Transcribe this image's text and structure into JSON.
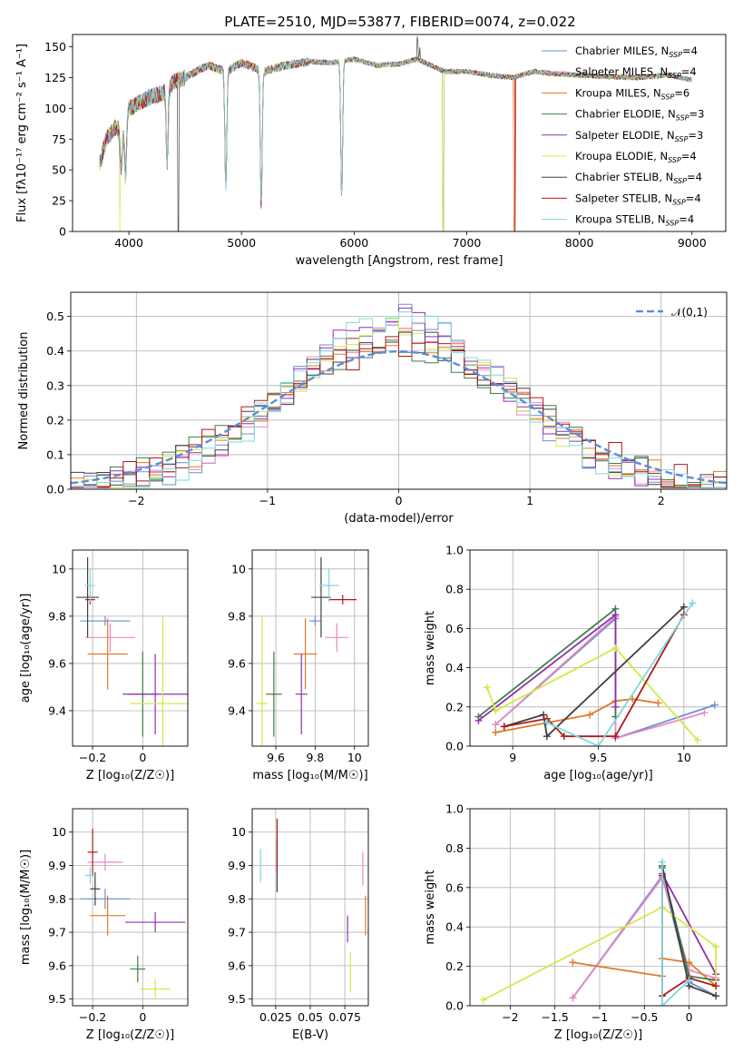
{
  "figure": {
    "title": "PLATE=2510, MJD=53877, FIBERID=0074, z=0.022"
  },
  "models": [
    {
      "name": "Chabrier MILES",
      "nssp": 4,
      "color": "#6b8fd6"
    },
    {
      "name": "Salpeter MILES",
      "nssp": 4,
      "color": "#e88ac0"
    },
    {
      "name": "Kroupa MILES",
      "nssp": 6,
      "color": "#e07a2a"
    },
    {
      "name": "Chabrier ELODIE",
      "nssp": 3,
      "color": "#3e7f4a"
    },
    {
      "name": "Salpeter ELODIE",
      "nssp": 3,
      "color": "#9030b0"
    },
    {
      "name": "Kroupa ELODIE",
      "nssp": 4,
      "color": "#d4e84a"
    },
    {
      "name": "Chabrier STELIB",
      "nssp": 4,
      "color": "#404040"
    },
    {
      "name": "Salpeter STELIB",
      "nssp": 4,
      "color": "#b01818"
    },
    {
      "name": "Kroupa STELIB",
      "nssp": 4,
      "color": "#7dd8e0"
    }
  ],
  "chart_data": [
    {
      "id": "spectrum",
      "type": "line",
      "xlabel": "wavelength [Angstrom, rest frame]",
      "ylabel": "Flux [fλ10⁻¹⁷ erg cm⁻² s⁻¹ A⁻¹]",
      "xlim": [
        3500,
        9300
      ],
      "ylim": [
        0,
        160
      ],
      "xticks": [
        4000,
        5000,
        6000,
        7000,
        8000,
        9000
      ],
      "yticks": [
        0,
        25,
        50,
        75,
        100,
        125,
        150
      ],
      "spectrum_nodes": [
        [
          3740,
          55
        ],
        [
          3800,
          75
        ],
        [
          3880,
          85
        ],
        [
          3950,
          80
        ],
        [
          4000,
          100
        ],
        [
          4100,
          105
        ],
        [
          4200,
          110
        ],
        [
          4300,
          112
        ],
        [
          4400,
          122
        ],
        [
          4500,
          125
        ],
        [
          4700,
          135
        ],
        [
          4860,
          130
        ],
        [
          5000,
          137
        ],
        [
          5200,
          130
        ],
        [
          5400,
          135
        ],
        [
          5600,
          138
        ],
        [
          5800,
          137
        ],
        [
          6000,
          140
        ],
        [
          6200,
          135
        ],
        [
          6400,
          136
        ],
        [
          6560,
          140
        ],
        [
          6800,
          130
        ],
        [
          7000,
          130
        ],
        [
          7200,
          127
        ],
        [
          7400,
          125
        ],
        [
          7600,
          130
        ],
        [
          7800,
          128
        ],
        [
          8000,
          127
        ],
        [
          8200,
          126
        ],
        [
          8500,
          125
        ],
        [
          8800,
          127
        ],
        [
          9000,
          123
        ]
      ],
      "dips": [
        [
          3930,
          30
        ],
        [
          3970,
          45
        ],
        [
          4340,
          60
        ],
        [
          4861,
          95
        ],
        [
          5175,
          110
        ],
        [
          5890,
          112
        ]
      ],
      "emission": [
        [
          6563,
          155
        ],
        [
          6583,
          140
        ]
      ],
      "drops": [
        {
          "x": 3920,
          "model": 5
        },
        {
          "x": 4440,
          "model": 6
        },
        {
          "x": 6790,
          "model": 5
        },
        {
          "x": 6790,
          "model": 3
        },
        {
          "x": 7420,
          "model": 2
        },
        {
          "x": 7430,
          "model": 7
        }
      ],
      "legend_position": "top-right"
    },
    {
      "id": "residuals",
      "type": "histogram",
      "xlabel": "(data-model)/error",
      "ylabel": "Normed distribution",
      "xlim": [
        -2.5,
        2.5
      ],
      "ylim": [
        0,
        0.57
      ],
      "xticks": [
        -2,
        -1,
        0,
        1,
        2
      ],
      "yticks": [
        0.0,
        0.1,
        0.2,
        0.3,
        0.4,
        0.5
      ],
      "bin_width": 0.1,
      "reference": {
        "label": "𝒩(0,1)",
        "mean": 0,
        "sigma": 1
      },
      "grid": true
    },
    {
      "id": "age_vs_Z",
      "type": "errorbar",
      "xlabel": "Z [log₁₀(Z/Z☉)]",
      "ylabel": "age  [log₁₀(age/yr)]",
      "xlim": [
        -0.28,
        0.18
      ],
      "ylim": [
        9.25,
        10.08
      ],
      "xticks": [
        -0.2,
        0.0
      ],
      "yticks": [
        9.4,
        9.6,
        9.8,
        10.0
      ],
      "points": [
        {
          "model": 0,
          "x": -0.15,
          "xerr": 0.1,
          "y": 9.78,
          "yerr": 0.02
        },
        {
          "model": 1,
          "x": -0.13,
          "xerr": 0.1,
          "y": 9.71,
          "yerr": 0.06
        },
        {
          "model": 2,
          "x": -0.14,
          "xerr": 0.08,
          "y": 9.64,
          "yerr": 0.15
        },
        {
          "model": 3,
          "x": 0.0,
          "xerr": 0.06,
          "y": 9.47,
          "yerr": 0.18
        },
        {
          "model": 4,
          "x": 0.05,
          "xerr": 0.13,
          "y": 9.47,
          "yerr": 0.17
        },
        {
          "model": 5,
          "x": 0.08,
          "xerr": 0.13,
          "y": 9.43,
          "yerr": 0.37
        },
        {
          "model": 6,
          "x": -0.22,
          "xerr": 0.045,
          "y": 9.88,
          "yerr": 0.17
        },
        {
          "model": 7,
          "x": -0.21,
          "xerr": 0.02,
          "y": 9.87,
          "yerr": 0.02
        },
        {
          "model": 8,
          "x": -0.21,
          "xerr": 0.02,
          "y": 9.93,
          "yerr": 0.07
        }
      ]
    },
    {
      "id": "age_vs_mass",
      "type": "errorbar",
      "xlabel": "mass [log₁₀(M/M☉)]",
      "ylabel": "",
      "xlim": [
        9.48,
        10.07
      ],
      "ylim": [
        9.25,
        10.08
      ],
      "xticks": [
        9.6,
        9.8,
        10.0
      ],
      "yticks": [
        9.4,
        9.6,
        9.8,
        10.0
      ],
      "points": [
        {
          "model": 0,
          "x": 9.8,
          "xerr": 0.03,
          "y": 9.78,
          "yerr": 0.02
        },
        {
          "model": 1,
          "x": 9.91,
          "xerr": 0.06,
          "y": 9.71,
          "yerr": 0.06
        },
        {
          "model": 2,
          "x": 9.75,
          "xerr": 0.06,
          "y": 9.64,
          "yerr": 0.15
        },
        {
          "model": 3,
          "x": 9.59,
          "xerr": 0.04,
          "y": 9.47,
          "yerr": 0.18
        },
        {
          "model": 4,
          "x": 9.73,
          "xerr": 0.03,
          "y": 9.47,
          "yerr": 0.17
        },
        {
          "model": 5,
          "x": 9.53,
          "xerr": 0.03,
          "y": 9.43,
          "yerr": 0.37
        },
        {
          "model": 6,
          "x": 9.83,
          "xerr": 0.05,
          "y": 9.88,
          "yerr": 0.17
        },
        {
          "model": 7,
          "x": 9.94,
          "xerr": 0.07,
          "y": 9.87,
          "yerr": 0.02
        },
        {
          "model": 8,
          "x": 9.87,
          "xerr": 0.05,
          "y": 9.93,
          "yerr": 0.07
        }
      ]
    },
    {
      "id": "weight_vs_age",
      "type": "line",
      "xlabel": "age  [log₁₀(age/yr)]",
      "ylabel": "mass weight",
      "xlim": [
        8.75,
        10.25
      ],
      "ylim": [
        0,
        1
      ],
      "xticks": [
        9.0,
        9.5,
        10.0
      ],
      "yticks": [
        0.0,
        0.2,
        0.4,
        0.6,
        0.8,
        1.0
      ],
      "series": [
        {
          "model": 0,
          "x": [
            8.9,
            9.6,
            9.6,
            10.18
          ],
          "y": [
            0.11,
            0.65,
            0.04,
            0.21
          ]
        },
        {
          "model": 1,
          "x": [
            8.9,
            9.6,
            9.6,
            10.12
          ],
          "y": [
            0.11,
            0.66,
            0.04,
            0.17
          ]
        },
        {
          "model": 2,
          "x": [
            8.9,
            9.45,
            9.6,
            9.7,
            9.85
          ],
          "y": [
            0.07,
            0.16,
            0.23,
            0.24,
            0.22
          ]
        },
        {
          "model": 3,
          "x": [
            8.8,
            9.6,
            9.6
          ],
          "y": [
            0.15,
            0.7,
            0.15
          ]
        },
        {
          "model": 4,
          "x": [
            8.8,
            9.6,
            9.6
          ],
          "y": [
            0.13,
            0.67,
            0.2
          ]
        },
        {
          "model": 5,
          "x": [
            8.85,
            8.9,
            9.6,
            10.08
          ],
          "y": [
            0.3,
            0.18,
            0.5,
            0.03
          ]
        },
        {
          "model": 6,
          "x": [
            8.95,
            9.18,
            9.2,
            10.0
          ],
          "y": [
            0.1,
            0.16,
            0.05,
            0.71
          ]
        },
        {
          "model": 7,
          "x": [
            8.95,
            9.2,
            9.3,
            9.6,
            10.0
          ],
          "y": [
            0.1,
            0.14,
            0.05,
            0.05,
            0.67
          ]
        },
        {
          "model": 8,
          "x": [
            9.2,
            9.5,
            10.05
          ],
          "y": [
            0.12,
            0.0,
            0.73
          ]
        }
      ]
    },
    {
      "id": "mass_vs_Z",
      "type": "errorbar",
      "xlabel": "Z [log₁₀(Z/Z☉)]",
      "ylabel": "mass [log₁₀(M/M☉)]",
      "xlim": [
        -0.28,
        0.18
      ],
      "ylim": [
        9.48,
        10.07
      ],
      "xticks": [
        -0.2,
        0.0
      ],
      "yticks": [
        9.5,
        9.6,
        9.7,
        9.8,
        9.9,
        10.0
      ],
      "points": [
        {
          "model": 0,
          "x": -0.15,
          "xerr": 0.1,
          "y": 9.8,
          "yerr": 0.03
        },
        {
          "model": 1,
          "x": -0.15,
          "xerr": 0.07,
          "y": 9.91,
          "yerr": 0.025
        },
        {
          "model": 2,
          "x": -0.14,
          "xerr": 0.07,
          "y": 9.75,
          "yerr": 0.06
        },
        {
          "model": 3,
          "x": -0.02,
          "xerr": 0.03,
          "y": 9.59,
          "yerr": 0.04
        },
        {
          "model": 4,
          "x": 0.05,
          "xerr": 0.12,
          "y": 9.73,
          "yerr": 0.03
        },
        {
          "model": 5,
          "x": 0.05,
          "xerr": 0.06,
          "y": 9.53,
          "yerr": 0.03
        },
        {
          "model": 6,
          "x": -0.19,
          "xerr": 0.02,
          "y": 9.83,
          "yerr": 0.05
        },
        {
          "model": 7,
          "x": -0.2,
          "xerr": 0.02,
          "y": 9.94,
          "yerr": 0.07
        },
        {
          "model": 8,
          "x": -0.21,
          "xerr": 0.02,
          "y": 9.87,
          "yerr": 0.025
        }
      ]
    },
    {
      "id": "mass_vs_ebv",
      "type": "errorbar",
      "xlabel": "E(B-V)",
      "ylabel": "",
      "xlim": [
        0.008,
        0.092
      ],
      "ylim": [
        9.48,
        10.07
      ],
      "xticks": [
        0.025,
        0.05,
        0.075
      ],
      "yticks": [
        9.5,
        9.6,
        9.7,
        9.8,
        9.9,
        10.0
      ],
      "points": [
        {
          "model": 1,
          "x": 0.088,
          "xerr": 0,
          "y": 9.89,
          "yerr": 0.05
        },
        {
          "model": 2,
          "x": 0.09,
          "xerr": 0,
          "y": 9.75,
          "yerr": 0.06
        },
        {
          "model": 4,
          "x": 0.077,
          "xerr": 0,
          "y": 9.71,
          "yerr": 0.04
        },
        {
          "model": 5,
          "x": 0.079,
          "xerr": 0,
          "y": 9.58,
          "yerr": 0.06
        },
        {
          "model": 6,
          "x": 0.026,
          "xerr": 0,
          "y": 9.9,
          "yerr": 0.08
        },
        {
          "model": 7,
          "x": 0.026,
          "xerr": 0,
          "y": 9.96,
          "yerr": 0.08
        },
        {
          "model": 8,
          "x": 0.014,
          "xerr": 0,
          "y": 9.9,
          "yerr": 0.05
        }
      ]
    },
    {
      "id": "weight_vs_Z",
      "type": "line",
      "xlabel": "Z [log₁₀(Z/Z☉)]",
      "ylabel": "mass weight",
      "xlim": [
        -2.45,
        0.42
      ],
      "ylim": [
        0,
        1
      ],
      "xticks": [
        -2.0,
        -1.5,
        -1.0,
        -0.5,
        0.0
      ],
      "yticks": [
        0.0,
        0.2,
        0.4,
        0.6,
        0.8,
        1.0
      ],
      "series": [
        {
          "model": 0,
          "x": [
            -1.3,
            -0.3,
            0.0,
            0.3
          ],
          "y": [
            0.04,
            0.66,
            0.12,
            0.05
          ]
        },
        {
          "model": 1,
          "x": [
            -1.3,
            -0.3,
            0.0,
            0.3
          ],
          "y": [
            0.04,
            0.65,
            0.18,
            0.14
          ]
        },
        {
          "model": 2,
          "x": [
            -1.3,
            -0.3,
            -0.3,
            0.0,
            0.3
          ],
          "y": [
            0.22,
            0.15,
            0.24,
            0.22,
            0.1
          ]
        },
        {
          "model": 3,
          "x": [
            -0.3,
            0.0,
            0.3
          ],
          "y": [
            0.7,
            0.15,
            0.13
          ]
        },
        {
          "model": 4,
          "x": [
            -0.3,
            0.3,
            0.3
          ],
          "y": [
            0.67,
            0.16,
            0.13
          ]
        },
        {
          "model": 5,
          "x": [
            -2.3,
            -0.3,
            0.3,
            0.3
          ],
          "y": [
            0.03,
            0.5,
            0.3,
            0.1
          ]
        },
        {
          "model": 6,
          "x": [
            -0.3,
            0.0,
            0.3
          ],
          "y": [
            0.71,
            0.1,
            0.05
          ]
        },
        {
          "model": 7,
          "x": [
            -0.3,
            -0.3,
            0.0,
            0.3
          ],
          "y": [
            0.66,
            0.05,
            0.14,
            0.1
          ]
        },
        {
          "model": 8,
          "x": [
            -0.3,
            -0.3,
            0.0
          ],
          "y": [
            0.73,
            0.0,
            0.13
          ]
        }
      ]
    }
  ]
}
